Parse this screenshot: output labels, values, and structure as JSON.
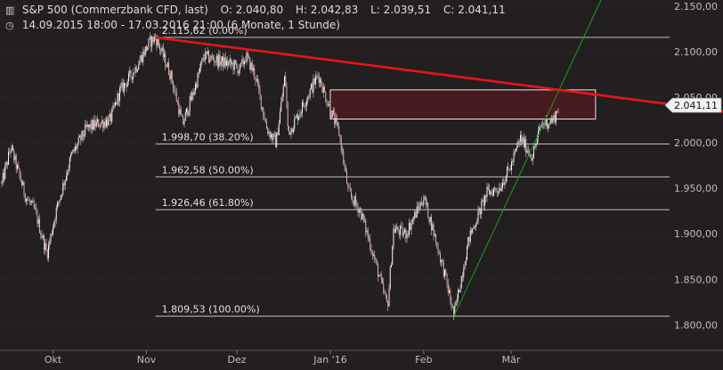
{
  "header": {
    "line1": {
      "icon": "chart-settings-icon",
      "instrument": "S&P 500 (Commerzbank CFD, last)",
      "open": "O: 2.040,80",
      "high": "H: 2.042,83",
      "low": "L: 2.039,51",
      "close": "C: 2.041,11"
    },
    "line2": {
      "icon": "clock-icon",
      "range": "14.09.2015 18:00 - 17.03.2016 21:00 (6 Monate, 1 Stunde)"
    }
  },
  "chart_data": {
    "type": "candlestick",
    "title": "",
    "xlabel": "",
    "ylabel": "",
    "ylim": [
      1780,
      2170
    ],
    "x_ticks": [
      "Okt",
      "Nov",
      "Dez",
      "Jan '16",
      "Feb",
      "Mär"
    ],
    "y_ticks": [
      {
        "value": 1800,
        "label": "1.800,00"
      },
      {
        "value": 1850,
        "label": "1.850,00"
      },
      {
        "value": 1900,
        "label": "1.900,00"
      },
      {
        "value": 1950,
        "label": "1.950,00"
      },
      {
        "value": 2000,
        "label": "2.000,00"
      },
      {
        "value": 2050,
        "label": "2.050,00"
      },
      {
        "value": 2100,
        "label": "2.100,00"
      },
      {
        "value": 2150,
        "label": "2.150,00"
      }
    ],
    "fibonacci_levels": [
      {
        "value": 2115.62,
        "label": "2.115,62 (0.00%)"
      },
      {
        "value": 1998.7,
        "label": "1.998,70 (38.20%)"
      },
      {
        "value": 1962.58,
        "label": "1.962,58 (50.00%)"
      },
      {
        "value": 1926.46,
        "label": "1.926,46 (61.80%)"
      },
      {
        "value": 1809.53,
        "label": "1.809,53 (100.00%)"
      }
    ],
    "last_price": {
      "value": 2041.11,
      "label": "2.041,11"
    },
    "price_path": [
      [
        "2015-09-14",
        1955
      ],
      [
        "2015-09-17",
        1995
      ],
      [
        "2015-09-22",
        1940
      ],
      [
        "2015-09-25",
        1925
      ],
      [
        "2015-09-29",
        1878
      ],
      [
        "2015-10-02",
        1925
      ],
      [
        "2015-10-07",
        1985
      ],
      [
        "2015-10-12",
        2015
      ],
      [
        "2015-10-15",
        2020
      ],
      [
        "2015-10-20",
        2025
      ],
      [
        "2015-10-23",
        2055
      ],
      [
        "2015-10-28",
        2080
      ],
      [
        "2015-11-02",
        2110
      ],
      [
        "2015-11-04",
        2115.62
      ],
      [
        "2015-11-09",
        2075
      ],
      [
        "2015-11-13",
        2020
      ],
      [
        "2015-11-17",
        2060
      ],
      [
        "2015-11-20",
        2095
      ],
      [
        "2015-11-25",
        2090
      ],
      [
        "2015-11-30",
        2085
      ],
      [
        "2015-12-02",
        2080
      ],
      [
        "2015-12-04",
        2095
      ],
      [
        "2015-12-07",
        2075
      ],
      [
        "2015-12-11",
        2015
      ],
      [
        "2015-12-14",
        2000
      ],
      [
        "2015-12-17",
        2075
      ],
      [
        "2015-12-18",
        2010
      ],
      [
        "2015-12-22",
        2035
      ],
      [
        "2015-12-28",
        2075
      ],
      [
        "2015-12-31",
        2045
      ],
      [
        "2016-01-04",
        2010
      ],
      [
        "2016-01-07",
        1945
      ],
      [
        "2016-01-11",
        1925
      ],
      [
        "2016-01-15",
        1880
      ],
      [
        "2016-01-20",
        1820
      ],
      [
        "2016-01-22",
        1905
      ],
      [
        "2016-01-26",
        1900
      ],
      [
        "2016-02-01",
        1940
      ],
      [
        "2016-02-04",
        1905
      ],
      [
        "2016-02-08",
        1855
      ],
      [
        "2016-02-11",
        1810
      ],
      [
        "2016-02-16",
        1895
      ],
      [
        "2016-02-22",
        1945
      ],
      [
        "2016-02-26",
        1950
      ],
      [
        "2016-03-01",
        1975
      ],
      [
        "2016-03-04",
        2005
      ],
      [
        "2016-03-08",
        1985
      ],
      [
        "2016-03-11",
        2020
      ],
      [
        "2016-03-15",
        2025
      ],
      [
        "2016-03-17",
        2041.11
      ]
    ],
    "resistance_trendline": {
      "from": [
        "2015-11-04",
        2115.62
      ],
      "to": [
        "2016-03-31",
        2052
      ],
      "color": "#e8141b"
    },
    "support_trendline": {
      "from": [
        "2016-02-11",
        1809.53
      ],
      "to": [
        "2016-04-08",
        2215
      ],
      "color": "#1f9a1f"
    },
    "resistance_zone": {
      "from": "2016-01-01",
      "to": "2016-03-29",
      "low": 2026,
      "high": 2058,
      "color": "#4a1a20"
    },
    "candle_colors": {
      "up": "#f4f4f4",
      "down": "#e2aaa8",
      "wick": "#c8c8c8"
    },
    "grid": {
      "horizontal": true,
      "vertical": false
    }
  }
}
